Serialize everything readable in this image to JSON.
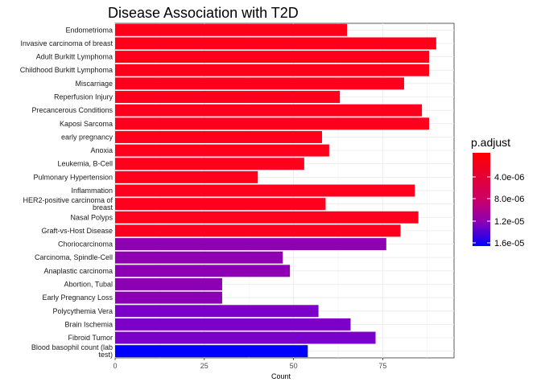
{
  "chart_data": {
    "type": "bar",
    "orientation": "horizontal",
    "title": "Disease Association with T2D",
    "xlabel": "Count",
    "ylabel": "",
    "xlim": [
      0,
      95
    ],
    "xticks": [
      0,
      25,
      50,
      75
    ],
    "grid": true,
    "categories": [
      "Endometrioma",
      "Invasive carcinoma of breast",
      "Adult Burkitt Lymphoma",
      "Childhood Burkitt Lymphoma",
      "Miscarriage",
      "Reperfusion Injury",
      "Precancerous Conditions",
      "Kaposi Sarcoma",
      "early pregnancy",
      "Anoxia",
      "Leukemia, B-Cell",
      "Pulmonary Hypertension",
      "Inflammation",
      "HER2-positive carcinoma of breast",
      "Nasal Polyps",
      "Graft-vs-Host Disease",
      "Choriocarcinoma",
      "Carcinoma, Spindle-Cell",
      "Anaplastic carcinoma",
      "Abortion, Tubal",
      "Early Pregnancy Loss",
      "Polycythemia Vera",
      "Brain Ischemia",
      "Fibroid Tumor",
      "Blood basophil count (lab test)"
    ],
    "values": [
      65,
      90,
      88,
      88,
      81,
      63,
      86,
      88,
      58,
      60,
      53,
      40,
      84,
      59,
      85,
      80,
      76,
      47,
      49,
      30,
      30,
      57,
      66,
      73,
      54
    ],
    "bar_colors": [
      "#ff0019",
      "#ff001a",
      "#ff001a",
      "#ff001a",
      "#ff001c",
      "#ff001c",
      "#ff001c",
      "#ff001c",
      "#ff001d",
      "#ff001d",
      "#ff001d",
      "#ff001d",
      "#ff001e",
      "#ff001e",
      "#ff001f",
      "#fd0020",
      "#8e00b2",
      "#8e00b2",
      "#8d00b3",
      "#8c00b4",
      "#8c00b4",
      "#7c00c8",
      "#7c00c8",
      "#7b00ca",
      "#0000ff"
    ],
    "legend": {
      "title": "p.adjust",
      "position": "right",
      "labels": [
        "4.0e-06",
        "8.0e-06",
        "1.2e-05",
        "1.6e-05"
      ],
      "colors": {
        "low": "#ff0000",
        "high": "#0000ff"
      }
    }
  }
}
